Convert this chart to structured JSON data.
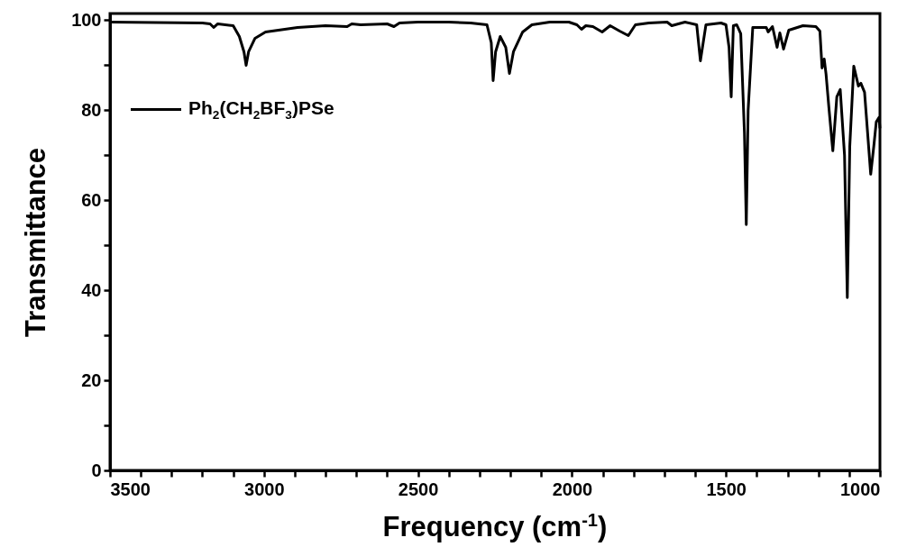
{
  "chart_data": {
    "type": "line",
    "xlabel": "Frequency (cm$^{-1}$)",
    "ylabel": "Transmittance",
    "xlim": [
      3500,
      1000
    ],
    "ylim": [
      0,
      101.5
    ],
    "xticks": [
      3500,
      {
        "value": 3400,
        "label": null
      },
      {
        "value": 3300,
        "label": null
      },
      {
        "value": 3200,
        "label": null
      },
      {
        "value": 3100,
        "label": null
      },
      3000,
      {
        "value": 2900,
        "label": null
      },
      {
        "value": 2800,
        "label": null
      },
      {
        "value": 2700,
        "label": null
      },
      {
        "value": 2600,
        "label": null
      },
      2500,
      {
        "value": 2400,
        "label": null
      },
      {
        "value": 2300,
        "label": null
      },
      {
        "value": 2200,
        "label": null
      },
      {
        "value": 2100,
        "label": null
      },
      2000,
      {
        "value": 1900,
        "label": null
      },
      {
        "value": 1800,
        "label": null
      },
      {
        "value": 1700,
        "label": null
      },
      {
        "value": 1600,
        "label": null
      },
      1500,
      {
        "value": 1400,
        "label": null
      },
      {
        "value": 1300,
        "label": null
      },
      {
        "value": 1200,
        "label": null
      },
      {
        "value": 1100,
        "label": null
      },
      1000
    ],
    "yticks": [
      0,
      {
        "value": 10,
        "label": null
      },
      20,
      {
        "value": 30,
        "label": null
      },
      40,
      {
        "value": 50,
        "label": null
      },
      60,
      {
        "value": 70,
        "label": null
      },
      80,
      {
        "value": 90,
        "label": null
      },
      100
    ],
    "grid": false,
    "legend": "top left",
    "marker": "none",
    "line_style": "solid",
    "series": [
      {
        "name": "Ph$_{2}$(CH$_{2}$BF$_{3}$)PSe",
        "color": "#000000",
        "x": [
          3500,
          3200,
          3175,
          3163,
          3150,
          3100,
          3080,
          3065,
          3058,
          3050,
          3029,
          2995,
          2891,
          2800,
          2730,
          2715,
          2686,
          2600,
          2578,
          2560,
          2500,
          2400,
          2329,
          2276,
          2262,
          2256,
          2248,
          2233,
          2215,
          2203,
          2190,
          2160,
          2130,
          2072,
          2010,
          1984,
          1969,
          1955,
          1932,
          1902,
          1876,
          1845,
          1817,
          1794,
          1750,
          1691,
          1676,
          1633,
          1595,
          1583,
          1565,
          1516,
          1500,
          1490,
          1483,
          1476,
          1465,
          1452,
          1440,
          1434,
          1428,
          1413,
          1369,
          1363,
          1349,
          1334,
          1325,
          1313,
          1296,
          1250,
          1208,
          1195,
          1188,
          1181,
          1175,
          1165,
          1153,
          1140,
          1129,
          1115,
          1106,
          1098,
          1085,
          1070,
          1062,
          1050,
          1030,
          1020,
          1012,
          1003,
          1000
        ],
        "values": [
          99.6,
          99.4,
          99.2,
          98.4,
          99.2,
          98.8,
          96.4,
          93,
          90,
          93,
          96,
          97.4,
          98.4,
          98.8,
          98.6,
          99.2,
          99,
          99.2,
          98.6,
          99.4,
          99.6,
          99.6,
          99.4,
          99,
          95,
          86.6,
          93,
          96.4,
          94,
          88.2,
          93,
          97.4,
          99,
          99.6,
          99.6,
          99,
          98,
          98.8,
          98.6,
          97.4,
          98.8,
          97.6,
          96.6,
          99,
          99.4,
          99.6,
          98.8,
          99.6,
          99,
          91,
          99,
          99.4,
          99,
          94,
          83,
          98.8,
          99,
          97,
          75,
          54.6,
          80,
          98.4,
          98.4,
          97.4,
          98.6,
          94,
          97.2,
          93.6,
          97.8,
          98.8,
          98.6,
          97.6,
          89.4,
          91.4,
          88,
          80,
          71,
          83,
          84.6,
          70,
          38.4,
          72,
          89.8,
          85.4,
          86,
          84,
          65.8,
          72,
          77.4,
          78.4,
          76
        ]
      }
    ]
  }
}
